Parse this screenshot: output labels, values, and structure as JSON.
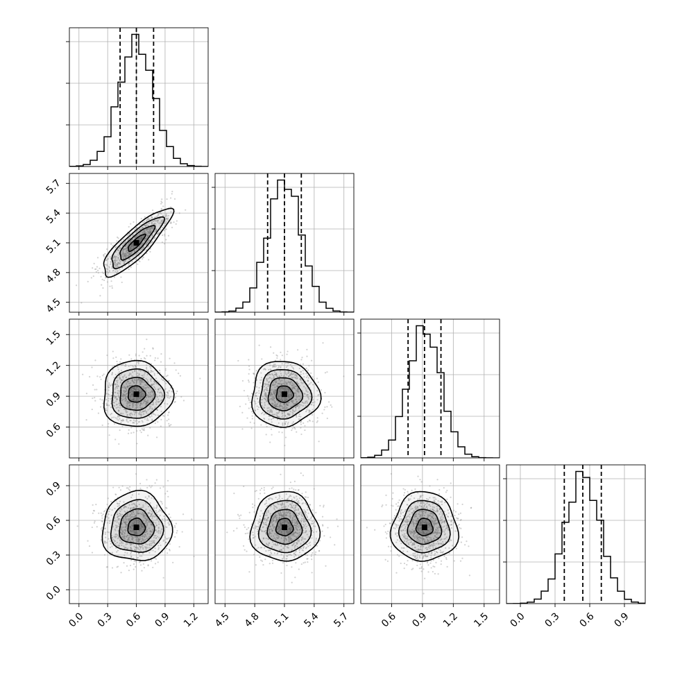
{
  "chart_data": {
    "type": "corner",
    "grid": true,
    "colors": {
      "line": "#000000",
      "grid": "#b0b0b0",
      "points": "#9a9a9a",
      "density_dark": "#3a3a3a"
    },
    "parameters": [
      {
        "range": [
          -0.1,
          1.35
        ],
        "ticks": [
          0.0,
          0.3,
          0.6,
          0.9,
          1.2
        ],
        "tick_labels": [
          "0.0",
          "0.3",
          "0.6",
          "0.9",
          "1.2"
        ],
        "mean": 0.6,
        "sd": 0.18,
        "quantiles": [
          0.43,
          0.6,
          0.78
        ]
      },
      {
        "range": [
          4.4,
          5.8
        ],
        "ticks": [
          4.5,
          4.8,
          5.1,
          5.4,
          5.7
        ],
        "tick_labels": [
          "4.5",
          "4.8",
          "5.1",
          "5.4",
          "5.7"
        ],
        "mean": 5.1,
        "sd": 0.17,
        "quantiles": [
          4.93,
          5.1,
          5.27
        ]
      },
      {
        "range": [
          0.3,
          1.65
        ],
        "ticks": [
          0.6,
          0.9,
          1.2,
          1.5
        ],
        "tick_labels": [
          "0.6",
          "0.9",
          "1.2",
          "1.5"
        ],
        "mean": 0.92,
        "sd": 0.16,
        "quantiles": [
          0.76,
          0.92,
          1.08
        ]
      },
      {
        "range": [
          -0.12,
          1.08
        ],
        "ticks": [
          0.0,
          0.3,
          0.6,
          0.9
        ],
        "tick_labels": [
          "0.0",
          "0.3",
          "0.6",
          "0.9"
        ],
        "mean": 0.54,
        "sd": 0.15,
        "quantiles": [
          0.38,
          0.54,
          0.7
        ]
      }
    ],
    "correlations": {
      "1-0": 0.85,
      "2-0": 0.0,
      "2-1": 0.0,
      "3-0": 0.0,
      "3-1": 0.0,
      "3-2": 0.0
    },
    "contour_levels_sigma": [
      0.5,
      1.0,
      1.5,
      2.0
    ]
  }
}
